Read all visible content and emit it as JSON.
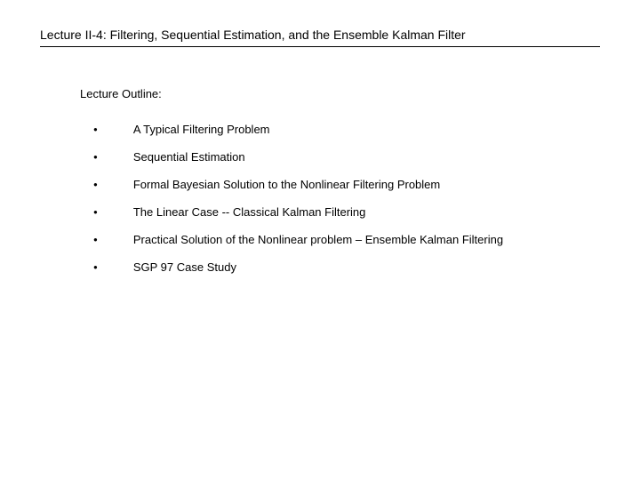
{
  "title": "Lecture II-4: Filtering, Sequential Estimation, and the Ensemble Kalman Filter",
  "outline_heading": "Lecture Outline:",
  "bullet_char": "●",
  "items": [
    "A Typical Filtering Problem",
    "Sequential Estimation",
    "Formal Bayesian Solution to the Nonlinear Filtering Problem",
    "The Linear Case -- Classical Kalman Filtering",
    "Practical Solution of the Nonlinear problem – Ensemble Kalman Filtering",
    "SGP 97 Case Study"
  ],
  "colors": {
    "text": "#000000",
    "background": "#ffffff",
    "underline": "#000000"
  },
  "typography": {
    "title_fontsize": 14,
    "body_fontsize": 13,
    "bullet_fontsize": 8,
    "font_family": "Verdana"
  }
}
